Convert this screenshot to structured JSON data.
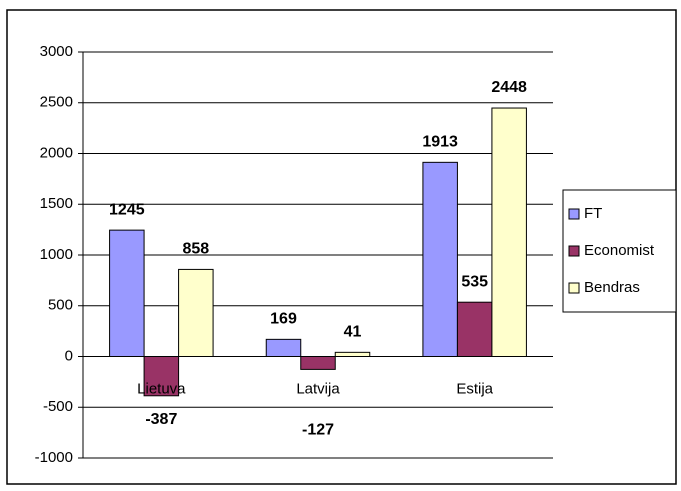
{
  "chart_data": {
    "type": "bar",
    "categories": [
      "Lietuva",
      "Latvija",
      "Estija"
    ],
    "series": [
      {
        "name": "FT",
        "color": "#9999ff",
        "values": [
          1245,
          169,
          1913
        ]
      },
      {
        "name": "Economist",
        "color": "#993366",
        "values": [
          -387,
          -127,
          535
        ]
      },
      {
        "name": "Bendras",
        "color": "#ffffcc",
        "values": [
          858,
          41,
          2448
        ]
      }
    ],
    "ylim": [
      -1000,
      3000
    ],
    "yticks": [
      -1000,
      -500,
      0,
      500,
      1000,
      1500,
      2000,
      2500,
      3000
    ],
    "grid": true,
    "legend": "right"
  }
}
